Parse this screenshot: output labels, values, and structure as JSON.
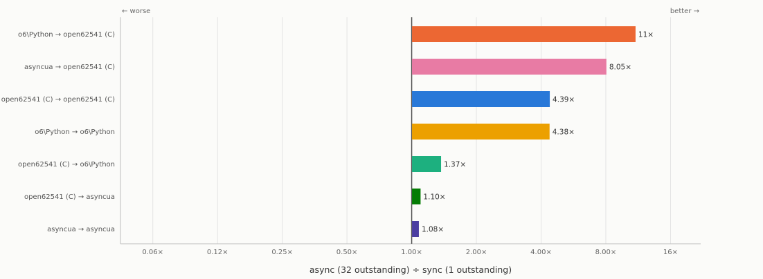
{
  "chart_data": {
    "type": "bar",
    "orientation": "horizontal",
    "scale": "log2",
    "baseline": 1.0,
    "xlim": [
      0.0442,
      22.1
    ],
    "categories": [
      "o6\\Python → open62541 (C)",
      "asyncua → open62541 (C)",
      "open62541 (C) → open62541 (C)",
      "o6\\Python → o6\\Python",
      "open62541 (C) → o6\\Python",
      "open62541 (C) → asyncua",
      "asyncua → asyncua"
    ],
    "values": [
      11,
      8.05,
      4.39,
      4.38,
      1.37,
      1.1,
      1.08
    ],
    "value_labels": [
      "11×",
      "8.05×",
      "4.39×",
      "4.38×",
      "1.37×",
      "1.10×",
      "1.08×"
    ],
    "colors": [
      "#ec6733",
      "#e87ba4",
      "#2878d8",
      "#eca000",
      "#1db07f",
      "#047c04",
      "#4b3ea1"
    ],
    "ticks": [
      0.0625,
      0.125,
      0.25,
      0.5,
      1,
      2,
      4,
      8,
      16
    ],
    "tick_labels": [
      "0.06×",
      "0.12×",
      "0.25×",
      "0.50×",
      "1.00×",
      "2.00×",
      "4.00×",
      "8.00×",
      "16×"
    ],
    "xlabel": "async (32 outstanding) ÷ sync (1 outstanding)",
    "left_annotation": "← worse",
    "right_annotation": "better →",
    "grid": true
  }
}
